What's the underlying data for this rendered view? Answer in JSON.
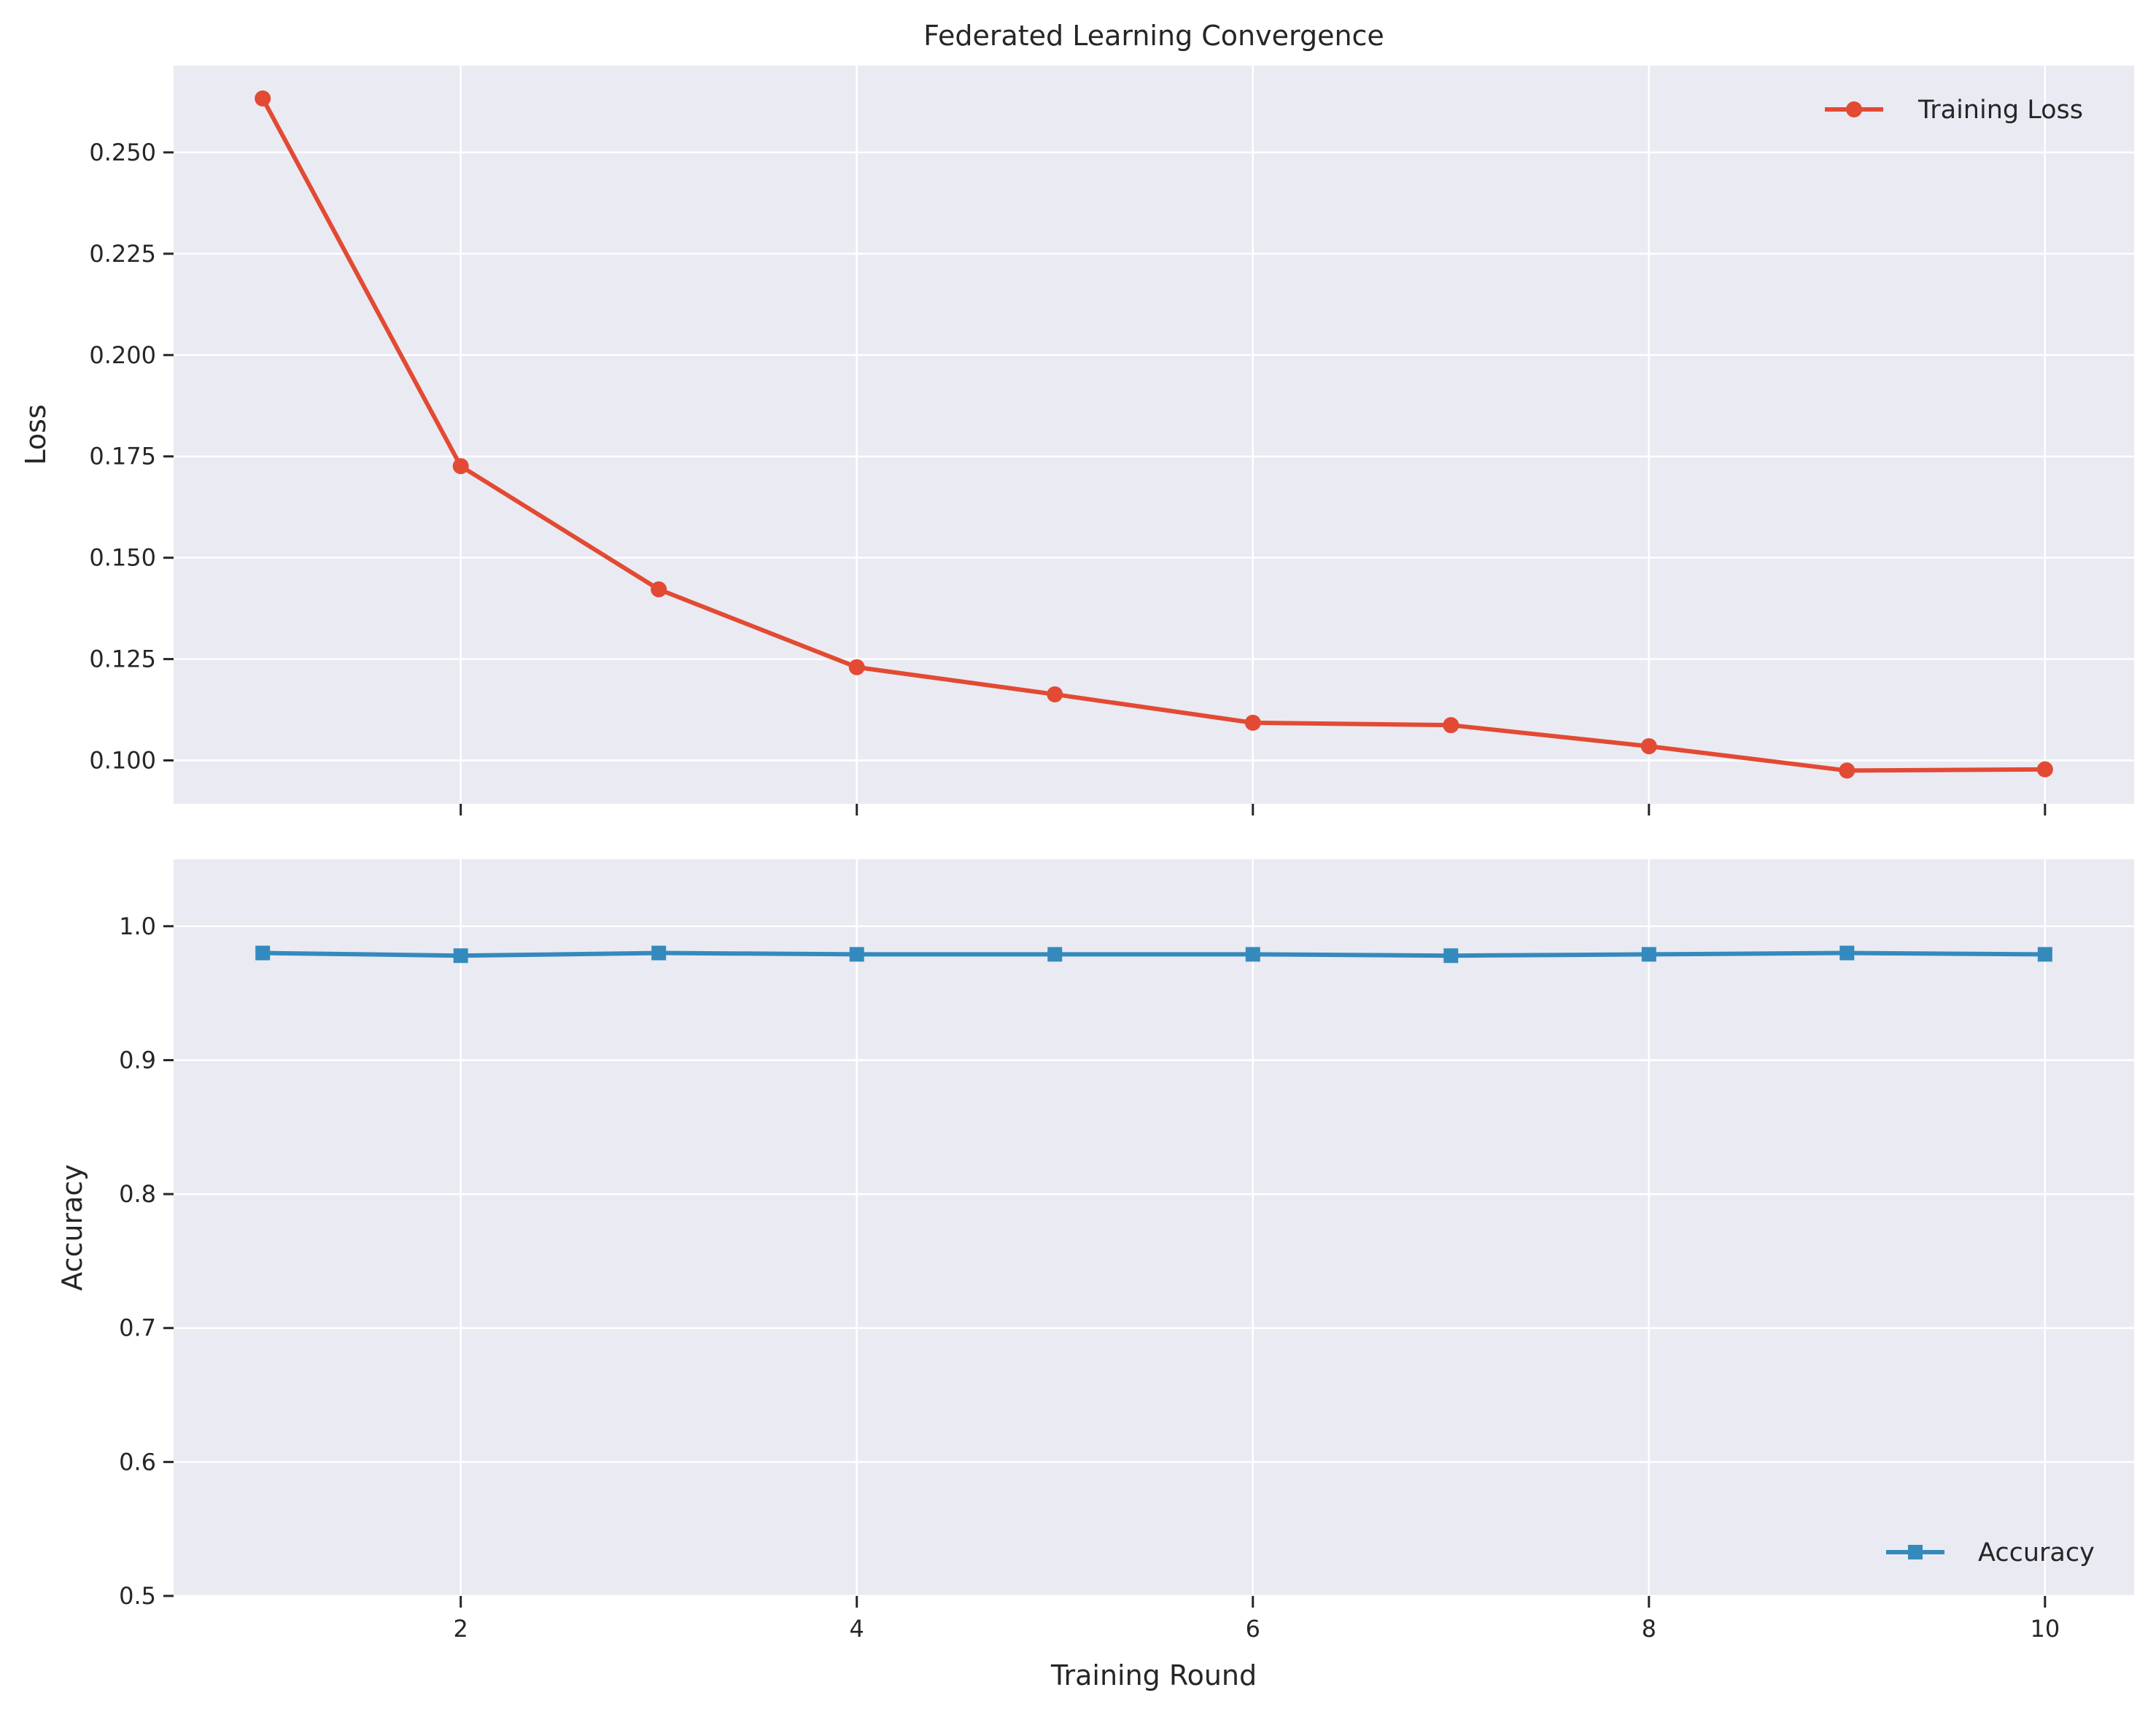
{
  "chart_data": [
    {
      "type": "line",
      "title": "Federated Learning Convergence",
      "xlabel": "",
      "ylabel": "Loss",
      "x": [
        1,
        2,
        3,
        4,
        5,
        6,
        7,
        8,
        9,
        10
      ],
      "xlim": [
        0.55,
        10.45
      ],
      "ylim": [
        0.0893,
        0.2714
      ],
      "xticks": [
        2,
        4,
        6,
        8,
        10
      ],
      "yticks": [
        "0.100",
        "0.125",
        "0.150",
        "0.175",
        "0.200",
        "0.225",
        "0.250"
      ],
      "grid": true,
      "legend_position": "top-right",
      "series": [
        {
          "name": "Training Loss",
          "color": "#E24A33",
          "marker": "circle",
          "values": [
            0.2633,
            0.1726,
            0.1422,
            0.123,
            0.1163,
            0.1093,
            0.1087,
            0.1035,
            0.0975,
            0.0978
          ]
        }
      ]
    },
    {
      "type": "line",
      "title": "",
      "xlabel": "Training Round",
      "ylabel": "Accuracy",
      "x": [
        1,
        2,
        3,
        4,
        5,
        6,
        7,
        8,
        9,
        10
      ],
      "xlim": [
        0.55,
        10.45
      ],
      "ylim": [
        0.5,
        1.05
      ],
      "xticks": [
        "2",
        "4",
        "6",
        "8",
        "10"
      ],
      "yticks": [
        "0.5",
        "0.6",
        "0.7",
        "0.8",
        "0.9",
        "1.0"
      ],
      "grid": true,
      "legend_position": "bottom-right",
      "series": [
        {
          "name": "Accuracy",
          "color": "#348ABD",
          "marker": "square",
          "values": [
            0.98,
            0.978,
            0.98,
            0.979,
            0.979,
            0.979,
            0.978,
            0.979,
            0.98,
            0.979
          ]
        }
      ]
    }
  ],
  "colors": {
    "panel_background": "#EAEAF2",
    "grid": "#FFFFFF",
    "text": "#262626"
  }
}
